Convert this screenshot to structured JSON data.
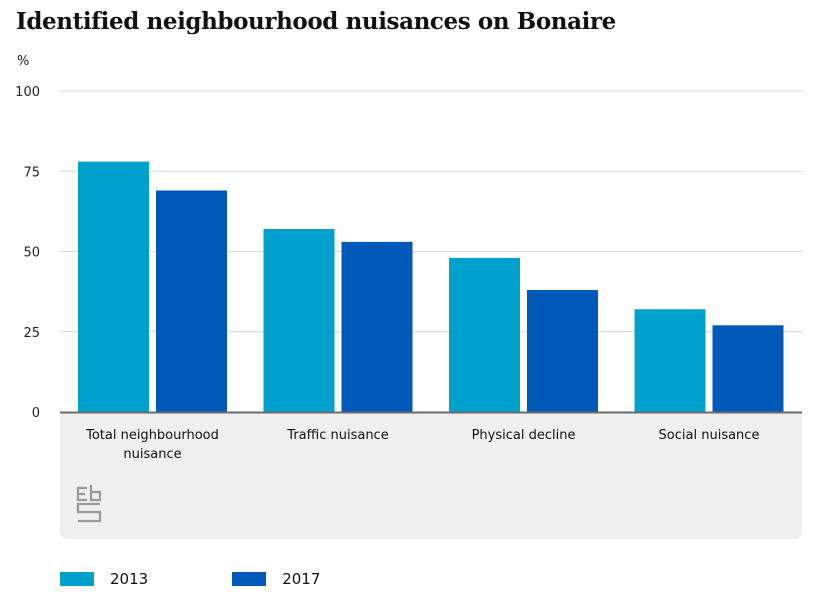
{
  "chart_data": {
    "type": "bar",
    "title": "Identified neighbourhood nuisances on Bonaire",
    "ylabel": "%",
    "xlabel": "",
    "ylim": [
      0,
      100
    ],
    "yticks": [
      0,
      25,
      50,
      75,
      100
    ],
    "grid": true,
    "categories": [
      [
        "Total neighbourhood",
        "nuisance"
      ],
      [
        "Traffic nuisance"
      ],
      [
        "Physical decline"
      ],
      [
        "Social nuisance"
      ]
    ],
    "series": [
      {
        "name": "2013",
        "color": "#00a1cd",
        "values": [
          78,
          57,
          48,
          32
        ]
      },
      {
        "name": "2017",
        "color": "#0058b8",
        "values": [
          69,
          53,
          38,
          27
        ]
      }
    ],
    "legend_position": "bottom-left"
  },
  "branding": {
    "logo": "cbs-logo-icon"
  }
}
